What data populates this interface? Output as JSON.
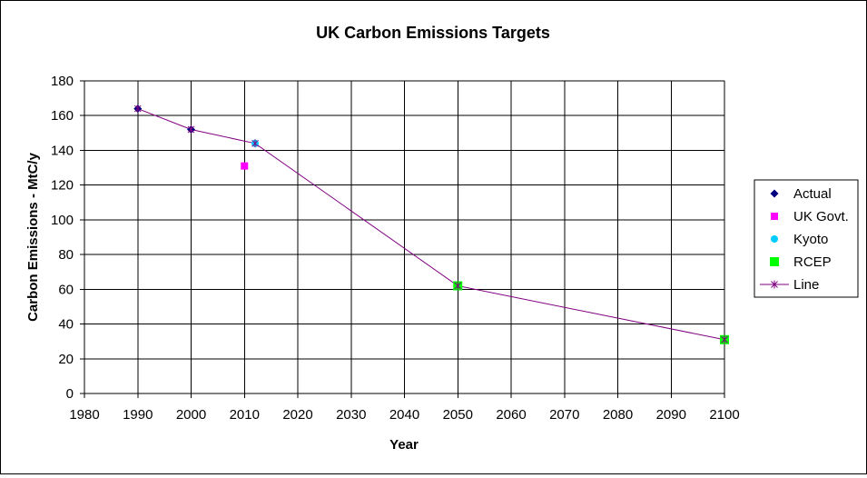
{
  "chart_data": {
    "type": "scatter",
    "title": "UK Carbon Emissions Targets",
    "xlabel": "Year",
    "ylabel": "Carbon Emissions - MtC/y",
    "xlim": [
      1980,
      2100
    ],
    "ylim": [
      0,
      180
    ],
    "x_ticks": [
      1980,
      1990,
      2000,
      2010,
      2020,
      2030,
      2040,
      2050,
      2060,
      2070,
      2080,
      2090,
      2100
    ],
    "y_ticks": [
      0,
      20,
      40,
      60,
      80,
      100,
      120,
      140,
      160,
      180
    ],
    "grid": true,
    "legend_position": "right",
    "series": [
      {
        "name": "Actual",
        "marker": "diamond",
        "color": "#000080",
        "points": [
          [
            1990,
            164
          ],
          [
            2000,
            152
          ]
        ]
      },
      {
        "name": "UK Govt.",
        "marker": "square",
        "color": "#ff00ff",
        "points": [
          [
            2010,
            131
          ]
        ]
      },
      {
        "name": "Kyoto",
        "marker": "circle",
        "color": "#00ccff",
        "points": [
          [
            2012,
            144
          ]
        ]
      },
      {
        "name": "RCEP",
        "marker": "big-square",
        "color": "#00ff00",
        "points": [
          [
            2050,
            62
          ],
          [
            2100,
            31
          ]
        ]
      },
      {
        "name": "Line",
        "marker": "star",
        "color": "#800080",
        "line": true,
        "points": [
          [
            1990,
            164
          ],
          [
            2000,
            152
          ],
          [
            2012,
            144
          ],
          [
            2050,
            62
          ],
          [
            2100,
            31
          ]
        ]
      }
    ]
  }
}
